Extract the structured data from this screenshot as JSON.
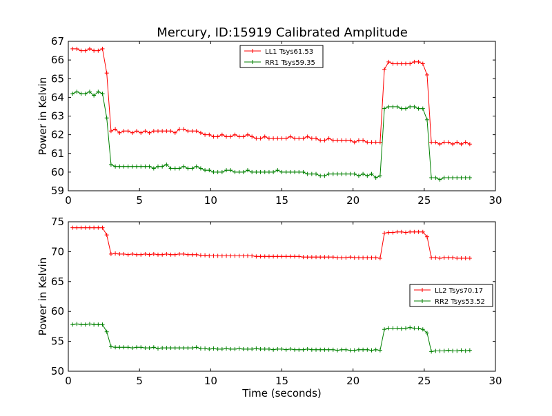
{
  "title": "Mercury, ID:15919 Calibrated Amplitude",
  "chart_data": [
    {
      "type": "line",
      "ylabel": "Power in Kelvin",
      "xlabel": "",
      "xlim": [
        0,
        30
      ],
      "ylim": [
        59,
        67
      ],
      "xticks": [
        0,
        5,
        10,
        15,
        20,
        25,
        30
      ],
      "yticks": [
        59,
        60,
        61,
        62,
        63,
        64,
        65,
        66,
        67
      ],
      "grid": false,
      "legend_position": "top-center",
      "x": [
        0.3,
        0.6,
        0.9,
        1.2,
        1.5,
        1.8,
        2.1,
        2.4,
        2.7,
        3.0,
        3.3,
        3.6,
        3.9,
        4.2,
        4.5,
        4.8,
        5.1,
        5.4,
        5.7,
        6.0,
        6.3,
        6.6,
        6.9,
        7.2,
        7.5,
        7.8,
        8.1,
        8.4,
        8.7,
        9.0,
        9.3,
        9.6,
        9.9,
        10.2,
        10.5,
        10.8,
        11.1,
        11.4,
        11.7,
        12.0,
        12.3,
        12.6,
        12.9,
        13.2,
        13.5,
        13.8,
        14.1,
        14.4,
        14.7,
        15.0,
        15.3,
        15.6,
        15.9,
        16.2,
        16.5,
        16.8,
        17.1,
        17.4,
        17.7,
        18.0,
        18.3,
        18.6,
        18.9,
        19.2,
        19.5,
        19.8,
        20.1,
        20.4,
        20.7,
        21.0,
        21.3,
        21.6,
        21.9,
        22.2,
        22.5,
        22.8,
        23.1,
        23.4,
        23.7,
        24.0,
        24.3,
        24.6,
        24.9,
        25.2,
        25.5,
        25.8,
        26.1,
        26.4,
        26.7,
        27.0,
        27.3,
        27.6,
        27.9,
        28.2
      ],
      "series": [
        {
          "name": "LL1 Tsys61.53",
          "color": "#ff0000",
          "values": [
            66.6,
            66.6,
            66.5,
            66.5,
            66.6,
            66.5,
            66.5,
            66.6,
            65.3,
            62.2,
            62.3,
            62.1,
            62.2,
            62.2,
            62.1,
            62.2,
            62.1,
            62.2,
            62.1,
            62.2,
            62.2,
            62.2,
            62.2,
            62.2,
            62.1,
            62.3,
            62.3,
            62.2,
            62.2,
            62.2,
            62.1,
            62.0,
            62.0,
            61.9,
            61.9,
            62.0,
            61.9,
            61.9,
            62.0,
            61.9,
            61.9,
            62.0,
            61.9,
            61.8,
            61.8,
            61.9,
            61.8,
            61.8,
            61.8,
            61.8,
            61.8,
            61.9,
            61.8,
            61.8,
            61.8,
            61.9,
            61.8,
            61.8,
            61.7,
            61.7,
            61.8,
            61.7,
            61.7,
            61.7,
            61.7,
            61.7,
            61.6,
            61.7,
            61.7,
            61.6,
            61.6,
            61.6,
            61.6,
            65.5,
            65.9,
            65.8,
            65.8,
            65.8,
            65.8,
            65.8,
            65.9,
            65.9,
            65.8,
            65.2,
            61.6,
            61.6,
            61.5,
            61.6,
            61.6,
            61.5,
            61.6,
            61.5,
            61.6,
            61.5
          ]
        },
        {
          "name": "RR1 Tsys59.35",
          "color": "#008000",
          "values": [
            64.2,
            64.3,
            64.2,
            64.2,
            64.3,
            64.1,
            64.3,
            64.2,
            62.9,
            60.4,
            60.3,
            60.3,
            60.3,
            60.3,
            60.3,
            60.3,
            60.3,
            60.3,
            60.3,
            60.2,
            60.3,
            60.3,
            60.4,
            60.2,
            60.2,
            60.2,
            60.3,
            60.2,
            60.2,
            60.3,
            60.2,
            60.1,
            60.1,
            60.0,
            60.0,
            60.0,
            60.1,
            60.1,
            60.0,
            60.0,
            60.0,
            60.1,
            60.0,
            60.0,
            60.0,
            60.0,
            60.0,
            60.0,
            60.1,
            60.0,
            60.0,
            60.0,
            60.0,
            60.0,
            60.0,
            59.9,
            59.9,
            59.9,
            59.8,
            59.8,
            59.9,
            59.9,
            59.9,
            59.9,
            59.9,
            59.9,
            59.9,
            59.8,
            59.9,
            59.8,
            59.9,
            59.7,
            59.8,
            63.4,
            63.5,
            63.5,
            63.5,
            63.4,
            63.4,
            63.5,
            63.5,
            63.4,
            63.4,
            62.8,
            59.7,
            59.7,
            59.6,
            59.7,
            59.7,
            59.7,
            59.7,
            59.7,
            59.7,
            59.7
          ]
        }
      ]
    },
    {
      "type": "line",
      "ylabel": "Power in Kelvin",
      "xlabel": "Time (seconds)",
      "xlim": [
        0,
        30
      ],
      "ylim": [
        50,
        75
      ],
      "xticks": [
        0,
        5,
        10,
        15,
        20,
        25,
        30
      ],
      "yticks": [
        50,
        55,
        60,
        65,
        70,
        75
      ],
      "grid": false,
      "legend_position": "center-right",
      "x": [
        0.3,
        0.6,
        0.9,
        1.2,
        1.5,
        1.8,
        2.1,
        2.4,
        2.7,
        3.0,
        3.3,
        3.6,
        3.9,
        4.2,
        4.5,
        4.8,
        5.1,
        5.4,
        5.7,
        6.0,
        6.3,
        6.6,
        6.9,
        7.2,
        7.5,
        7.8,
        8.1,
        8.4,
        8.7,
        9.0,
        9.3,
        9.6,
        9.9,
        10.2,
        10.5,
        10.8,
        11.1,
        11.4,
        11.7,
        12.0,
        12.3,
        12.6,
        12.9,
        13.2,
        13.5,
        13.8,
        14.1,
        14.4,
        14.7,
        15.0,
        15.3,
        15.6,
        15.9,
        16.2,
        16.5,
        16.8,
        17.1,
        17.4,
        17.7,
        18.0,
        18.3,
        18.6,
        18.9,
        19.2,
        19.5,
        19.8,
        20.1,
        20.4,
        20.7,
        21.0,
        21.3,
        21.6,
        21.9,
        22.2,
        22.5,
        22.8,
        23.1,
        23.4,
        23.7,
        24.0,
        24.3,
        24.6,
        24.9,
        25.2,
        25.5,
        25.8,
        26.1,
        26.4,
        26.7,
        27.0,
        27.3,
        27.6,
        27.9,
        28.2
      ],
      "series": [
        {
          "name": "LL2 Tsys70.17",
          "color": "#ff0000",
          "values": [
            74.0,
            74.0,
            74.0,
            74.0,
            74.0,
            74.0,
            74.0,
            74.0,
            72.8,
            69.6,
            69.7,
            69.6,
            69.6,
            69.5,
            69.6,
            69.5,
            69.5,
            69.6,
            69.5,
            69.6,
            69.5,
            69.5,
            69.6,
            69.5,
            69.5,
            69.6,
            69.6,
            69.5,
            69.5,
            69.5,
            69.4,
            69.4,
            69.3,
            69.3,
            69.3,
            69.3,
            69.3,
            69.3,
            69.3,
            69.3,
            69.3,
            69.3,
            69.3,
            69.2,
            69.2,
            69.2,
            69.2,
            69.2,
            69.2,
            69.2,
            69.2,
            69.2,
            69.2,
            69.2,
            69.1,
            69.1,
            69.1,
            69.1,
            69.1,
            69.1,
            69.1,
            69.1,
            69.0,
            69.0,
            69.0,
            69.1,
            69.0,
            69.0,
            69.0,
            69.0,
            69.0,
            69.0,
            68.9,
            73.1,
            73.2,
            73.2,
            73.3,
            73.3,
            73.2,
            73.3,
            73.3,
            73.3,
            73.3,
            72.5,
            69.0,
            69.0,
            68.9,
            69.0,
            69.0,
            69.0,
            68.9,
            68.9,
            68.9,
            68.9
          ]
        },
        {
          "name": "RR2 Tsys53.52",
          "color": "#008000",
          "values": [
            57.8,
            57.9,
            57.8,
            57.8,
            57.9,
            57.8,
            57.8,
            57.8,
            56.6,
            54.1,
            54.0,
            54.0,
            54.0,
            54.0,
            53.9,
            54.0,
            54.0,
            53.9,
            53.9,
            54.0,
            53.8,
            53.9,
            53.9,
            53.9,
            53.9,
            53.9,
            53.9,
            53.9,
            53.9,
            54.0,
            53.8,
            53.8,
            53.7,
            53.8,
            53.7,
            53.7,
            53.8,
            53.7,
            53.7,
            53.8,
            53.7,
            53.7,
            53.7,
            53.8,
            53.7,
            53.7,
            53.7,
            53.6,
            53.7,
            53.7,
            53.6,
            53.7,
            53.6,
            53.6,
            53.6,
            53.7,
            53.6,
            53.6,
            53.6,
            53.6,
            53.6,
            53.6,
            53.5,
            53.6,
            53.6,
            53.5,
            53.5,
            53.6,
            53.6,
            53.6,
            53.5,
            53.6,
            53.5,
            57.0,
            57.2,
            57.2,
            57.2,
            57.1,
            57.2,
            57.3,
            57.2,
            57.2,
            57.0,
            56.4,
            53.3,
            53.4,
            53.4,
            53.4,
            53.5,
            53.4,
            53.4,
            53.5,
            53.4,
            53.5
          ]
        }
      ]
    }
  ]
}
